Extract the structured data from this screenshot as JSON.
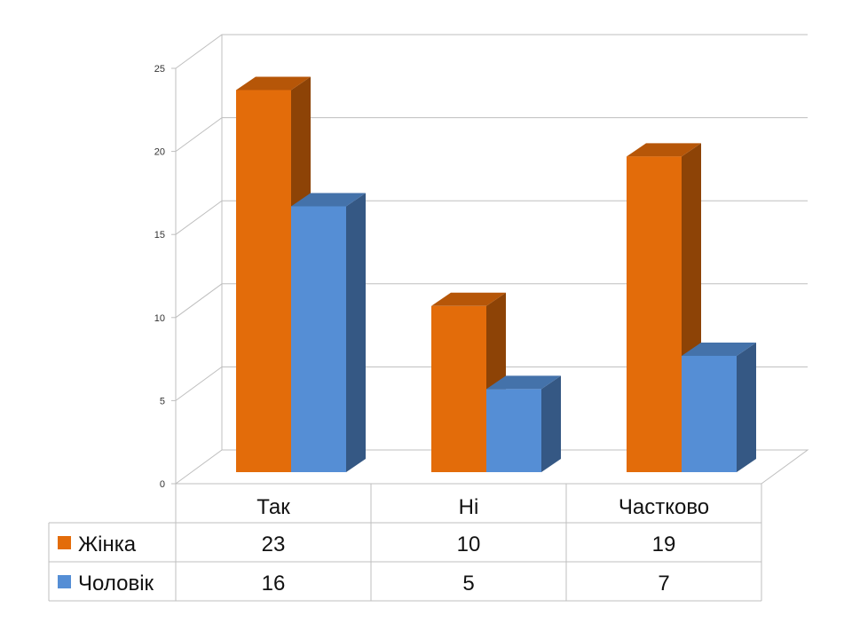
{
  "chart_data": {
    "type": "bar",
    "categories": [
      "Так",
      "Ні",
      "Частково"
    ],
    "series": [
      {
        "name": "Жінка",
        "values": [
          23,
          10,
          19
        ],
        "color": "#E36C0A"
      },
      {
        "name": "Чоловік",
        "values": [
          16,
          5,
          7
        ],
        "color": "#558ED5"
      }
    ],
    "ylim": [
      0,
      25
    ],
    "yticks": [
      "0",
      "5",
      "10",
      "15",
      "20",
      "25"
    ],
    "grid": true,
    "legend": "data-table-left",
    "style": "3d-clustered-column-with-data-table"
  }
}
